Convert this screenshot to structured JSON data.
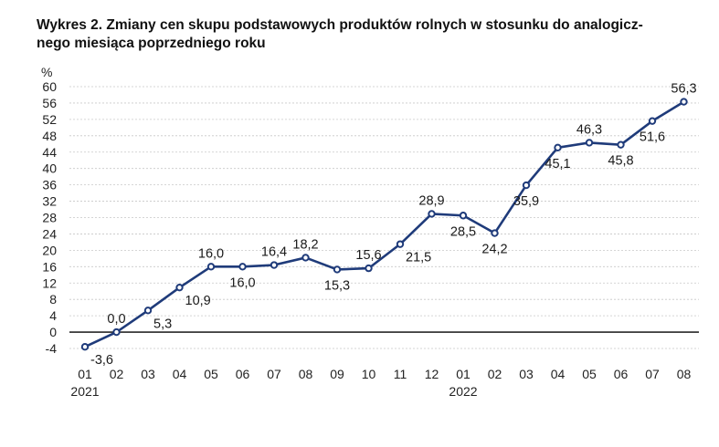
{
  "chart_data": {
    "type": "line",
    "title_lines": [
      "Wykres 2. Zmiany cen skupu podstawowych produktów rolnych w stosunku do analogicz-",
      "nego miesiąca poprzedniego roku"
    ],
    "ylabel": "%",
    "ylim": [
      -4,
      60
    ],
    "yticks": [
      -4,
      0,
      4,
      8,
      12,
      16,
      20,
      24,
      28,
      32,
      36,
      40,
      44,
      48,
      52,
      56,
      60
    ],
    "categories": [
      "01",
      "02",
      "03",
      "04",
      "05",
      "06",
      "07",
      "08",
      "09",
      "10",
      "11",
      "12",
      "01",
      "02",
      "03",
      "04",
      "05",
      "06",
      "07",
      "08"
    ],
    "year_labels": [
      {
        "index": 0,
        "label": "2021"
      },
      {
        "index": 12,
        "label": "2022"
      }
    ],
    "values": [
      -3.6,
      0.0,
      5.3,
      10.9,
      16.0,
      16.0,
      16.4,
      18.2,
      15.3,
      15.6,
      21.5,
      28.9,
      28.5,
      24.2,
      35.9,
      45.1,
      46.3,
      45.8,
      51.6,
      56.3
    ],
    "data_labels": [
      "-3,6",
      "0,0",
      "5,3",
      "10,9",
      "16,0",
      "16,0",
      "16,4",
      "18,2",
      "15,3",
      "15,6",
      "21,5",
      "28,9",
      "28,5",
      "24,2",
      "35,9",
      "45,1",
      "46,3",
      "45,8",
      "51,6",
      "56,3"
    ],
    "label_positions": [
      "right",
      "above",
      "right",
      "right",
      "above",
      "below",
      "above",
      "above",
      "below",
      "above",
      "right",
      "above",
      "below",
      "below",
      "below",
      "below",
      "above",
      "below",
      "below",
      "above"
    ],
    "grid": true,
    "line_color": "#1f3b7a",
    "marker_fill": "#ffffff"
  }
}
